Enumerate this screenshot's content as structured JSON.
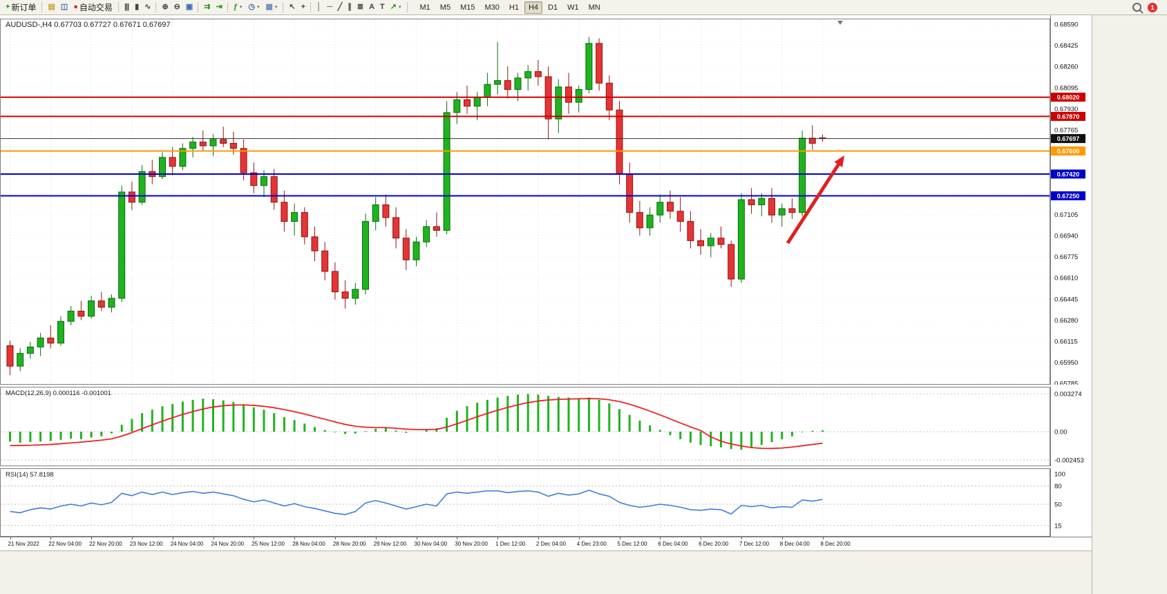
{
  "toolbar": {
    "items": [
      {
        "name": "new-order",
        "glyph": "+",
        "color": "#189518",
        "label": "新订单"
      },
      {
        "sep": true
      },
      {
        "name": "profiles",
        "glyph": "▤",
        "color": "#caa23a"
      },
      {
        "name": "charts-grid",
        "glyph": "◫",
        "color": "#3b6fb5"
      },
      {
        "name": "auto-trading",
        "glyph": "●",
        "color": "#d03030",
        "label": "自动交易"
      },
      {
        "sep": true
      },
      {
        "name": "bar-chart",
        "glyph": "|||",
        "color": "#444444"
      },
      {
        "name": "candlestick-chart",
        "glyph": "▮",
        "color": "#444444"
      },
      {
        "name": "line-chart",
        "glyph": "∿",
        "color": "#444444"
      },
      {
        "sep": true
      },
      {
        "name": "zoom-in",
        "glyph": "⊕",
        "color": "#444444"
      },
      {
        "name": "zoom-out",
        "glyph": "⊖",
        "color": "#444444"
      },
      {
        "name": "tile-windows",
        "glyph": "▣",
        "color": "#3b6fb5"
      },
      {
        "sep": true
      },
      {
        "name": "auto-scroll",
        "glyph": "⇉",
        "color": "#189518"
      },
      {
        "name": "chart-shift",
        "glyph": "⇥",
        "color": "#189518"
      },
      {
        "sep": true
      },
      {
        "name": "indicators",
        "glyph": "ƒ",
        "color": "#189518",
        "caret": true
      },
      {
        "name": "periods",
        "glyph": "◷",
        "color": "#3b6fb5",
        "caret": true
      },
      {
        "name": "templates",
        "glyph": "▦",
        "color": "#6a8bbf",
        "caret": true
      },
      {
        "sep": true
      },
      {
        "name": "cursor",
        "glyph": "↖",
        "color": "#444444"
      },
      {
        "name": "crosshair",
        "glyph": "+",
        "color": "#444444"
      },
      {
        "sep": true
      },
      {
        "name": "vertical-line",
        "glyph": "│",
        "color": "#444444"
      },
      {
        "name": "horizontal-line",
        "glyph": "─",
        "color": "#444444"
      },
      {
        "name": "trendline",
        "glyph": "╱",
        "color": "#444444"
      },
      {
        "name": "equidistant-channel",
        "glyph": "∥",
        "color": "#444444"
      },
      {
        "name": "fibonacci",
        "glyph": "≣",
        "color": "#444444"
      },
      {
        "name": "text",
        "glyph": "A",
        "color": "#444444"
      },
      {
        "name": "text-label",
        "glyph": "T",
        "color": "#444444"
      },
      {
        "name": "arrows",
        "glyph": "↗",
        "color": "#189518",
        "caret": true
      },
      {
        "sep": true
      }
    ],
    "timeframes": [
      "M1",
      "M5",
      "M15",
      "M30",
      "H1",
      "H4",
      "D1",
      "W1",
      "MN"
    ],
    "active_timeframe": "H4",
    "notification_badge": "1"
  },
  "chart": {
    "header_text": "AUDUSD-,H4 0.67703 0.67727 0.67671 0.67697",
    "symbol": "AUDUSD-",
    "timeframe": "H4",
    "open": "0.67703",
    "high": "0.67727",
    "low": "0.67671",
    "close": "0.67697"
  },
  "indicators": {
    "macd": {
      "name": "MACD(12,26,9)",
      "values": "0.000116 -0.001001"
    },
    "rsi": {
      "name": "RSI(14)",
      "value": "57.8198"
    }
  },
  "chart_data": {
    "type": "candlestick",
    "symbol": "AUDUSD",
    "timeframe": "H4",
    "price_axis": {
      "max": 0.6859,
      "step": 0.00165,
      "labels": [
        "0.68590",
        "0.68425",
        "0.68260",
        "0.68095",
        "0.67930",
        "0.67765",
        "0.67600",
        "0.67435",
        "0.67270",
        "0.67105",
        "0.66940",
        "0.66775",
        "0.66610",
        "0.66445",
        "0.66280",
        "0.66115",
        "0.65950",
        "0.65785"
      ]
    },
    "time_labels": [
      "21 Nov 2022",
      "22 Nov 04:00",
      "22 Nov 20:00",
      "23 Nov 12:00",
      "24 Nov 04:00",
      "24 Nov 20:00",
      "25 Nov 12:00",
      "28 Nov 04:00",
      "28 Nov 20:00",
      "29 Nov 12:00",
      "30 Nov 04:00",
      "30 Nov 20:00",
      "1 Dec 12:00",
      "2 Dec 04:00",
      "4 Dec 23:00",
      "5 Dec 12:00",
      "6 Dec 04:00",
      "6 Dec 20:00",
      "7 Dec 12:00",
      "8 Dec 04:00",
      "8 Dec 20:00"
    ],
    "label_every": 4,
    "ohlc": [
      [
        0.6608,
        0.6612,
        0.6585,
        0.6592
      ],
      [
        0.6592,
        0.6606,
        0.6588,
        0.6602
      ],
      [
        0.6602,
        0.6611,
        0.6598,
        0.6607
      ],
      [
        0.6607,
        0.6618,
        0.66,
        0.6614
      ],
      [
        0.6614,
        0.6624,
        0.6606,
        0.661
      ],
      [
        0.661,
        0.6631,
        0.6608,
        0.6627
      ],
      [
        0.6627,
        0.6639,
        0.6624,
        0.6635
      ],
      [
        0.6635,
        0.6643,
        0.6628,
        0.6631
      ],
      [
        0.6631,
        0.6647,
        0.6629,
        0.6643
      ],
      [
        0.6643,
        0.665,
        0.6635,
        0.6638
      ],
      [
        0.6638,
        0.6648,
        0.6634,
        0.6645
      ],
      [
        0.6645,
        0.6733,
        0.6642,
        0.6728
      ],
      [
        0.6728,
        0.6736,
        0.6714,
        0.672
      ],
      [
        0.672,
        0.6749,
        0.6718,
        0.6744
      ],
      [
        0.6744,
        0.6753,
        0.6734,
        0.674
      ],
      [
        0.674,
        0.6759,
        0.6738,
        0.6755
      ],
      [
        0.6755,
        0.6763,
        0.6741,
        0.6748
      ],
      [
        0.6748,
        0.6766,
        0.6745,
        0.6762
      ],
      [
        0.6762,
        0.6771,
        0.6755,
        0.6767
      ],
      [
        0.6767,
        0.6776,
        0.676,
        0.6764
      ],
      [
        0.6764,
        0.6773,
        0.6756,
        0.6769
      ],
      [
        0.6769,
        0.6779,
        0.6763,
        0.6766
      ],
      [
        0.6766,
        0.6775,
        0.6757,
        0.6762
      ],
      [
        0.6762,
        0.6769,
        0.6737,
        0.6743
      ],
      [
        0.6743,
        0.6751,
        0.6727,
        0.6733
      ],
      [
        0.6733,
        0.6745,
        0.6724,
        0.674
      ],
      [
        0.674,
        0.6746,
        0.6714,
        0.672
      ],
      [
        0.672,
        0.6729,
        0.6697,
        0.6705
      ],
      [
        0.6705,
        0.6719,
        0.6694,
        0.6712
      ],
      [
        0.6712,
        0.6716,
        0.6687,
        0.6693
      ],
      [
        0.6693,
        0.6701,
        0.6674,
        0.6682
      ],
      [
        0.6682,
        0.6689,
        0.6659,
        0.6666
      ],
      [
        0.6666,
        0.6673,
        0.6644,
        0.665
      ],
      [
        0.665,
        0.6659,
        0.6637,
        0.6645
      ],
      [
        0.6645,
        0.6657,
        0.664,
        0.6652
      ],
      [
        0.6652,
        0.6711,
        0.6648,
        0.6705
      ],
      [
        0.6705,
        0.6724,
        0.6698,
        0.6718
      ],
      [
        0.6718,
        0.6726,
        0.6701,
        0.6708
      ],
      [
        0.6708,
        0.6716,
        0.6684,
        0.6692
      ],
      [
        0.6692,
        0.6699,
        0.6667,
        0.6675
      ],
      [
        0.6675,
        0.6693,
        0.667,
        0.6689
      ],
      [
        0.6689,
        0.6706,
        0.6685,
        0.6701
      ],
      [
        0.6701,
        0.6712,
        0.6693,
        0.6698
      ],
      [
        0.6698,
        0.6799,
        0.6695,
        0.679
      ],
      [
        0.679,
        0.6806,
        0.6781,
        0.68
      ],
      [
        0.68,
        0.6811,
        0.6789,
        0.6795
      ],
      [
        0.6795,
        0.6806,
        0.6784,
        0.6802
      ],
      [
        0.6802,
        0.6821,
        0.6795,
        0.6812
      ],
      [
        0.6812,
        0.6845,
        0.6804,
        0.6815
      ],
      [
        0.6815,
        0.6826,
        0.6801,
        0.6808
      ],
      [
        0.6808,
        0.6821,
        0.6799,
        0.6817
      ],
      [
        0.6817,
        0.6827,
        0.6807,
        0.6822
      ],
      [
        0.6822,
        0.6831,
        0.6811,
        0.6818
      ],
      [
        0.6818,
        0.6826,
        0.6769,
        0.6785
      ],
      [
        0.6785,
        0.6816,
        0.6774,
        0.681
      ],
      [
        0.681,
        0.6821,
        0.6789,
        0.6798
      ],
      [
        0.6798,
        0.6811,
        0.679,
        0.6808
      ],
      [
        0.6808,
        0.6849,
        0.6805,
        0.6844
      ],
      [
        0.6844,
        0.6848,
        0.6807,
        0.6813
      ],
      [
        0.6813,
        0.6819,
        0.6784,
        0.6792
      ],
      [
        0.6792,
        0.6799,
        0.6734,
        0.6742
      ],
      [
        0.6742,
        0.6751,
        0.6704,
        0.6712
      ],
      [
        0.6712,
        0.6721,
        0.6694,
        0.67
      ],
      [
        0.67,
        0.6716,
        0.6694,
        0.671
      ],
      [
        0.671,
        0.6726,
        0.6704,
        0.672
      ],
      [
        0.672,
        0.6729,
        0.6707,
        0.6713
      ],
      [
        0.6713,
        0.6724,
        0.6697,
        0.6705
      ],
      [
        0.6705,
        0.6713,
        0.6684,
        0.669
      ],
      [
        0.669,
        0.6699,
        0.6679,
        0.6686
      ],
      [
        0.6686,
        0.6696,
        0.6677,
        0.6692
      ],
      [
        0.6692,
        0.6701,
        0.6684,
        0.6687
      ],
      [
        0.6687,
        0.669,
        0.6654,
        0.666
      ],
      [
        0.666,
        0.6727,
        0.6657,
        0.6722
      ],
      [
        0.6722,
        0.6731,
        0.6711,
        0.6718
      ],
      [
        0.6718,
        0.6727,
        0.6709,
        0.6723
      ],
      [
        0.6723,
        0.6731,
        0.6704,
        0.671
      ],
      [
        0.671,
        0.6719,
        0.6701,
        0.6715
      ],
      [
        0.6715,
        0.6723,
        0.6707,
        0.6712
      ],
      [
        0.6712,
        0.6776,
        0.6709,
        0.677
      ],
      [
        0.677,
        0.678,
        0.6761,
        0.6766
      ],
      [
        0.67703,
        0.67727,
        0.67671,
        0.67697
      ]
    ],
    "hlines": [
      {
        "price": 0.6802,
        "color": "#cc0000",
        "width": 2,
        "label": "0.68020"
      },
      {
        "price": 0.6787,
        "color": "#cc0000",
        "width": 2,
        "label": "0.67870"
      },
      {
        "price": 0.676,
        "color": "#ff9900",
        "width": 2,
        "label": "0.67600"
      },
      {
        "price": 0.6742,
        "color": "#0000cc",
        "width": 2,
        "label": "0.67420"
      },
      {
        "price": 0.6725,
        "color": "#0000cc",
        "width": 2,
        "label": "0.67250"
      }
    ],
    "current_price": {
      "price": 0.67697,
      "label": "0.67697",
      "color": "#111111"
    },
    "colors": {
      "up": "#1fb31f",
      "up_border": "#0b6b0b",
      "down": "#e53434",
      "down_border": "#8e1414"
    },
    "arrow": {
      "from": [
        1140,
        330
      ],
      "to": [
        1222,
        203
      ],
      "color": "#e02020"
    },
    "macd": {
      "type": "histogram+line",
      "scale_labels": [
        "0.003274",
        "0.00",
        "-0.002453"
      ],
      "scale_values": [
        0.003274,
        0,
        -0.002453
      ],
      "histogram_color": "#1fb31f",
      "signal_color": "#ee2222",
      "histogram": [
        -0.00085,
        -0.00095,
        -0.0009,
        -0.00085,
        -0.0008,
        -0.0007,
        -0.0006,
        -0.00065,
        -0.0005,
        -0.0004,
        -0.00015,
        0.0006,
        0.0011,
        0.0016,
        0.0019,
        0.0022,
        0.0024,
        0.0026,
        0.00275,
        0.00285,
        0.0028,
        0.0027,
        0.00255,
        0.00235,
        0.0021,
        0.0019,
        0.0016,
        0.00125,
        0.001,
        0.0007,
        0.0004,
        0.00015,
        -5e-05,
        -0.0002,
        -0.00015,
        5e-05,
        0.00025,
        0.0003,
        0.0001,
        -0.0001,
        0.0,
        0.0002,
        0.0003,
        0.0012,
        0.0018,
        0.0022,
        0.0025,
        0.00275,
        0.00295,
        0.0031,
        0.0032,
        0.00325,
        0.0032,
        0.0031,
        0.003,
        0.00295,
        0.0029,
        0.00295,
        0.00275,
        0.00245,
        0.00195,
        0.00145,
        0.00095,
        0.00055,
        0.00015,
        -0.0003,
        -0.00065,
        -0.00095,
        -0.00115,
        -0.00125,
        -0.00135,
        -0.0015,
        -0.00155,
        -0.0014,
        -0.00115,
        -0.0009,
        -0.00065,
        -0.0004,
        -5e-05,
        8e-05,
        0.000116
      ],
      "signal": [
        -0.0012,
        -0.00119,
        -0.00117,
        -0.00114,
        -0.0011,
        -0.00104,
        -0.00097,
        -0.0009,
        -0.00082,
        -0.00073,
        -0.00062,
        -0.00038,
        -8e-05,
        0.00026,
        0.00059,
        0.00091,
        0.00121,
        0.00149,
        0.00174,
        0.00196,
        0.00213,
        0.00224,
        0.0023,
        0.00231,
        0.00227,
        0.00219,
        0.00207,
        0.00191,
        0.00173,
        0.00152,
        0.0013,
        0.00107,
        0.00084,
        0.00063,
        0.00047,
        0.00039,
        0.00036,
        0.00035,
        0.0003,
        0.00022,
        0.00018,
        0.00018,
        0.0002,
        0.0004,
        0.00068,
        0.00098,
        0.00129,
        0.00158,
        0.00185,
        0.0021,
        0.00232,
        0.00251,
        0.00265,
        0.00274,
        0.00279,
        0.00282,
        0.00284,
        0.00286,
        0.00284,
        0.00276,
        0.0026,
        0.00237,
        0.00209,
        0.00178,
        0.00145,
        0.0011,
        0.00075,
        0.00041,
        0.0001,
        -0.00045,
        -0.00082,
        -0.00106,
        -0.00124,
        -0.00137,
        -0.00144,
        -0.00145,
        -0.00141,
        -0.00133,
        -0.00122,
        -0.0011,
        -0.001001
      ]
    },
    "rsi": {
      "type": "line",
      "scale_labels": [
        "100",
        "80",
        "50",
        "15"
      ],
      "scale_values": [
        100,
        80,
        50,
        15
      ],
      "levels": [
        80,
        50,
        15
      ],
      "line_color": "#3a7fd5",
      "values": [
        38,
        36,
        41,
        44,
        42,
        47,
        50,
        47,
        52,
        49,
        53,
        68,
        64,
        70,
        66,
        70,
        66,
        69,
        71,
        68,
        70,
        67,
        64,
        58,
        54,
        57,
        52,
        47,
        51,
        46,
        43,
        39,
        35,
        33,
        38,
        52,
        56,
        52,
        47,
        42,
        46,
        50,
        47,
        67,
        70,
        68,
        70,
        72,
        72,
        69,
        71,
        72,
        70,
        63,
        68,
        65,
        67,
        73,
        67,
        63,
        53,
        48,
        45,
        47,
        50,
        48,
        45,
        41,
        40,
        42,
        41,
        34,
        48,
        46,
        48,
        44,
        46,
        45,
        57,
        55,
        57.8
      ]
    }
  }
}
